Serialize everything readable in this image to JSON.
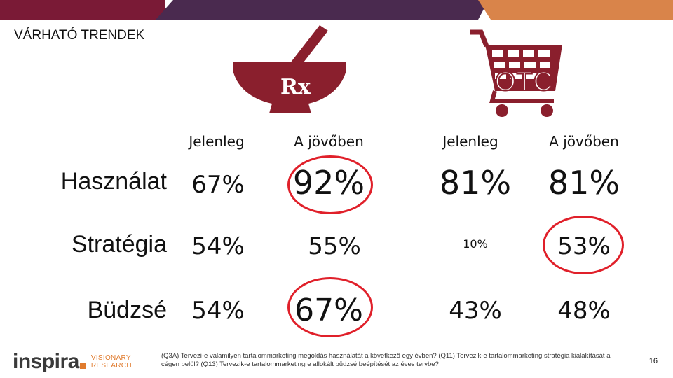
{
  "header": {
    "title": "VÁRHATÓ TRENDEK",
    "bar_colors": [
      "#7a1a36",
      "#4a2a4f",
      "#d9844a"
    ]
  },
  "icons": {
    "rx": {
      "name": "mortar-pestle-icon",
      "label": "Rx",
      "color": "#8a1f2d"
    },
    "otc": {
      "name": "shopping-cart-icon",
      "label": "OTC",
      "color": "#8a1f2d"
    }
  },
  "table": {
    "columns": [
      "Jelenleg",
      "A jövőben",
      "Jelenleg",
      "A jövőben"
    ],
    "rows": [
      {
        "label": "Használat",
        "values": [
          "67%",
          "92%",
          "81%",
          "81%"
        ]
      },
      {
        "label": "Stratégia",
        "values": [
          "54%",
          "55%",
          "10%",
          "53%"
        ]
      },
      {
        "label": "Büdzsé",
        "values": [
          "54%",
          "67%",
          "43%",
          "48%"
        ]
      }
    ],
    "highlight_color": "#e0202a"
  },
  "footer": {
    "logo_word": "inspira",
    "logo_sub_1": "VISIONARY",
    "logo_sub_2": "RESEARCH",
    "note": "(Q3A) Tervezi-e valamilyen tartalommarketing megoldás használatát a következő egy évben? (Q11) Tervezik-e tartalommarketing stratégia kialakítását a cégen belül? (Q13) Tervezik-e tartalommarketingre allokált büdzsé beépítését az éves tervbe?",
    "page_number": "16"
  }
}
